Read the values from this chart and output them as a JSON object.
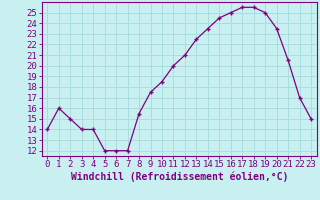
{
  "x": [
    0,
    1,
    2,
    3,
    4,
    5,
    6,
    7,
    8,
    9,
    10,
    11,
    12,
    13,
    14,
    15,
    16,
    17,
    18,
    19,
    20,
    21,
    22,
    23
  ],
  "y": [
    14.0,
    16.0,
    15.0,
    14.0,
    14.0,
    12.0,
    12.0,
    12.0,
    15.5,
    17.5,
    18.5,
    20.0,
    21.0,
    22.5,
    23.5,
    24.5,
    25.0,
    25.5,
    25.5,
    25.0,
    23.5,
    20.5,
    17.0,
    15.0
  ],
  "line_color": "#800080",
  "marker": "+",
  "bg_color": "#c8f0f0",
  "grid_color": "#aadddd",
  "xlabel": "Windchill (Refroidissement éolien,°C)",
  "xlabel_color": "#800080",
  "tick_color": "#800080",
  "ylim": [
    11.5,
    26
  ],
  "xlim": [
    -0.5,
    23.5
  ],
  "yticks": [
    12,
    13,
    14,
    15,
    16,
    17,
    18,
    19,
    20,
    21,
    22,
    23,
    24,
    25
  ],
  "xtick_labels": [
    "0",
    "1",
    "2",
    "3",
    "4",
    "5",
    "6",
    "7",
    "8",
    "9",
    "10",
    "11",
    "12",
    "13",
    "14",
    "15",
    "16",
    "17",
    "18",
    "19",
    "20",
    "21",
    "22",
    "23"
  ],
  "font_size": 6.5,
  "xlabel_fontsize": 7
}
